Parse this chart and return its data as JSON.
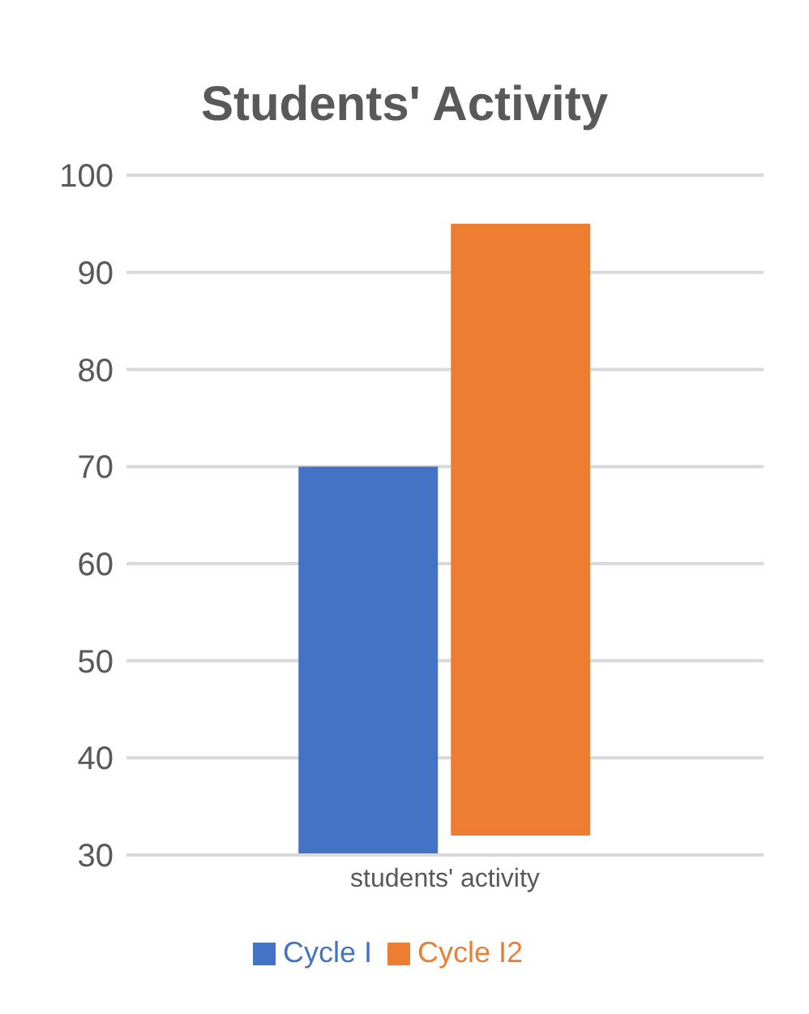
{
  "chart_data": {
    "type": "bar",
    "title": "Students' Activity",
    "categories": [
      "students' activity"
    ],
    "series": [
      {
        "name": "Cycle I",
        "color": "#4472c4",
        "values": [
          40
        ],
        "base": [
          30
        ]
      },
      {
        "name": "Cycle I2",
        "color": "#ed7d31",
        "values": [
          63
        ],
        "base": [
          32
        ]
      }
    ],
    "ylim": [
      30,
      100
    ],
    "yticks": [
      30,
      40,
      50,
      60,
      70,
      80,
      90,
      100
    ],
    "grid": "y",
    "legend": "bottom"
  }
}
